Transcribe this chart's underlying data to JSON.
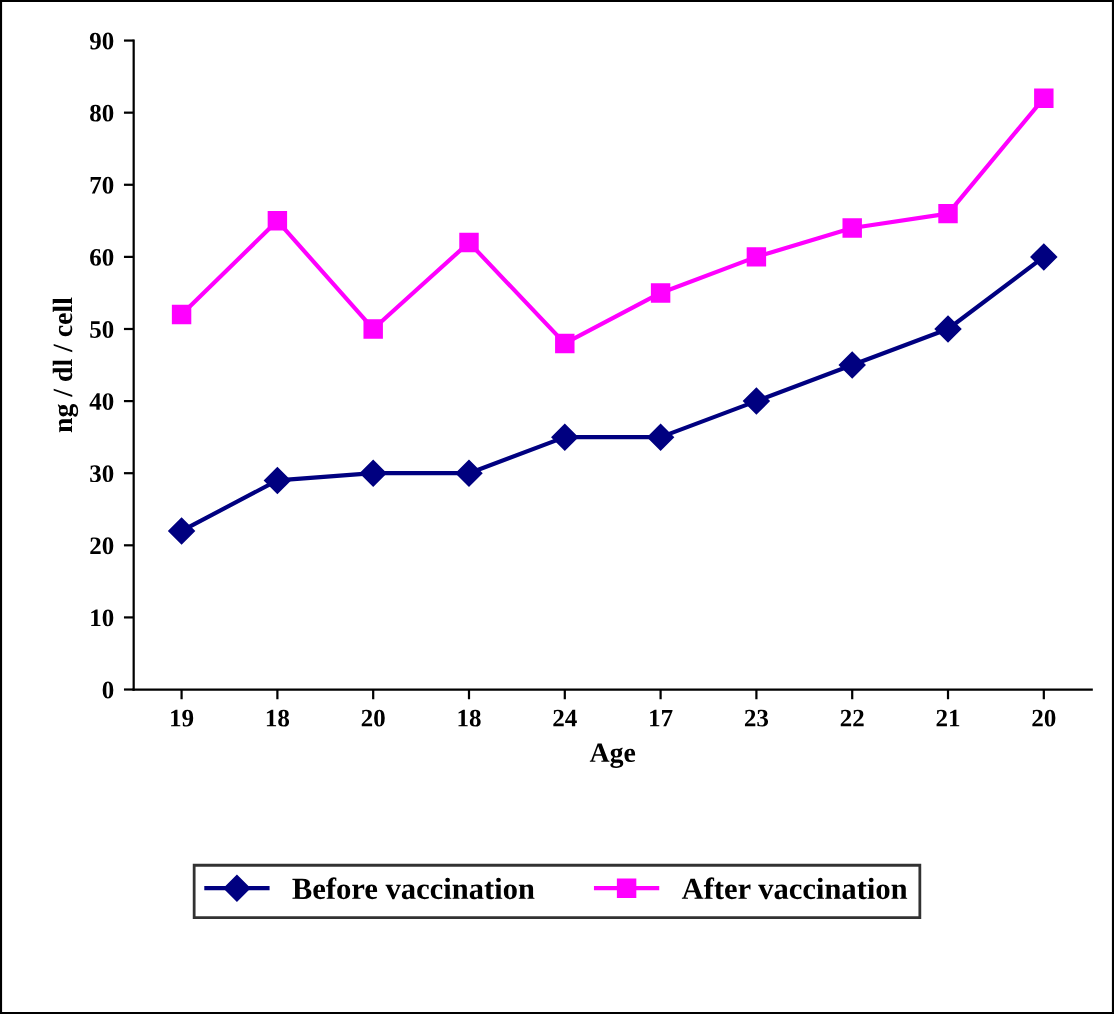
{
  "chart_data": {
    "type": "line",
    "xlabel": "Age",
    "ylabel": "ng / dl / cell",
    "categories": [
      "19",
      "18",
      "20",
      "18",
      "24",
      "17",
      "23",
      "22",
      "21",
      "20"
    ],
    "series": [
      {
        "name": "Before vaccination",
        "color": "#000080",
        "marker": "diamond",
        "values": [
          22,
          29,
          30,
          30,
          35,
          35,
          40,
          45,
          50,
          60
        ]
      },
      {
        "name": "After vaccination",
        "color": "#ff00ff",
        "marker": "square",
        "values": [
          52,
          65,
          50,
          62,
          48,
          55,
          60,
          64,
          66,
          82
        ]
      }
    ],
    "ylim": [
      0,
      90
    ],
    "yticks": [
      0,
      10,
      20,
      30,
      40,
      50,
      60,
      70,
      80,
      90
    ],
    "grid": false,
    "legend": "bottom",
    "line_style": "solid"
  }
}
